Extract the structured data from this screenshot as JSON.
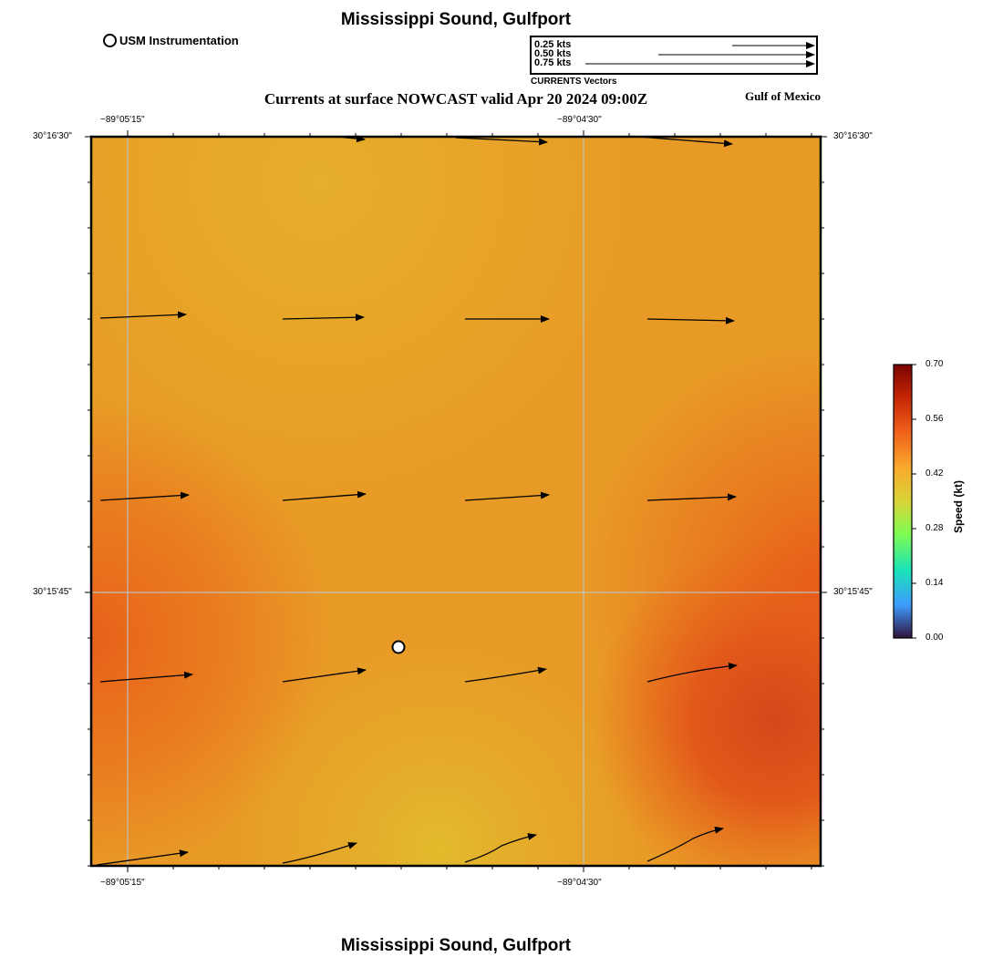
{
  "title": "Mississippi Sound, Gulfport",
  "subtitle": "Currents at surface NOWCAST valid Apr 20 2024 09:00Z",
  "region_label": "Gulf of Mexico",
  "legend": {
    "station_label": "USM Instrumentation",
    "vector_caption": "CURRENTS Vectors",
    "vector_scale": [
      {
        "label": "0.25 kts",
        "speed": 0.25
      },
      {
        "label": "0.50 kts",
        "speed": 0.5
      },
      {
        "label": "0.75 kts",
        "speed": 0.75
      }
    ]
  },
  "axes": {
    "lon_ticks": [
      "−89°05'15\"",
      "−89°04'30\""
    ],
    "lat_ticks": [
      "30°16'30\"",
      "30°15'45\""
    ]
  },
  "colorbar": {
    "title": "Speed (kt)",
    "ticks": [
      "0.70",
      "0.56",
      "0.42",
      "0.28",
      "0.14",
      "0.00"
    ],
    "min": 0.0,
    "max": 0.7
  },
  "colors": {
    "field_base": "#e8a428",
    "field_warm": "#e8641a",
    "field_hot": "#d4481a",
    "field_light": "#e3b82c",
    "grid": "#bfbfbf"
  }
}
